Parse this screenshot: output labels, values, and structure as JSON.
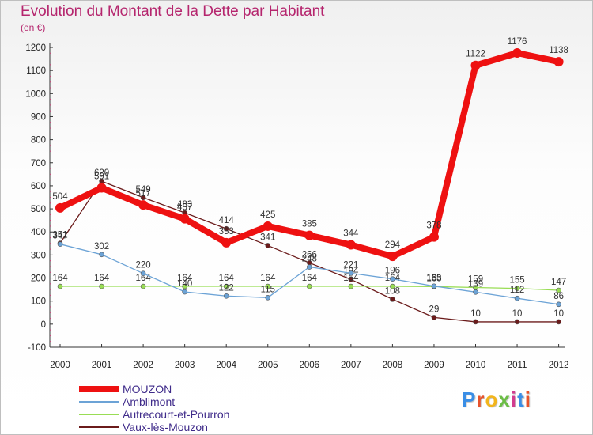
{
  "header": {
    "title": "Evolution du Montant de la Dette par Habitant",
    "subtitle": "(en €)"
  },
  "logo": {
    "text": "Proxiti",
    "colors": [
      "#3a8ee6",
      "#e8532b",
      "#f2b51c",
      "#6bbd45",
      "#d23c8f",
      "#3a8ee6",
      "#e8532b"
    ]
  },
  "chart_data": {
    "type": "line",
    "title": "Evolution du Montant de la Dette par Habitant",
    "ylabel": "(en €)",
    "xlabel": "",
    "categories": [
      "2000",
      "2001",
      "2002",
      "2003",
      "2004",
      "2005",
      "2006",
      "2007",
      "2008",
      "2009",
      "2010",
      "2011",
      "2012"
    ],
    "ylim": [
      -100,
      1200
    ],
    "yticks": [
      -100,
      0,
      100,
      200,
      300,
      400,
      500,
      600,
      700,
      800,
      900,
      1000,
      1100,
      1200
    ],
    "grid": false,
    "legend_position": "bottom-left",
    "series": [
      {
        "name": "Vaux-lès-Mouzon",
        "color": "#6b1b1b",
        "width": 1.3,
        "values": [
          351,
          620,
          549,
          483,
          414,
          341,
          266,
          194,
          108,
          29,
          10,
          10,
          10
        ]
      },
      {
        "name": "Autrecourt-et-Pourron",
        "color": "#99dd55",
        "width": 1.3,
        "values": [
          164,
          164,
          164,
          164,
          164,
          164,
          164,
          164,
          164,
          163,
          159,
          155,
          147
        ]
      },
      {
        "name": "Amblimont",
        "color": "#6ca3d6",
        "width": 1.3,
        "values": [
          347,
          302,
          220,
          140,
          122,
          115,
          248,
          221,
          196,
          165,
          139,
          112,
          86
        ]
      },
      {
        "name": "MOUZON",
        "color": "#ee1111",
        "width": 8,
        "values": [
          504,
          591,
          517,
          457,
          353,
          425,
          385,
          344,
          294,
          378,
          1122,
          1176,
          1138
        ]
      }
    ],
    "legend": [
      "MOUZON",
      "Amblimont",
      "Autrecourt-et-Pourron",
      "Vaux-lès-Mouzon"
    ]
  }
}
